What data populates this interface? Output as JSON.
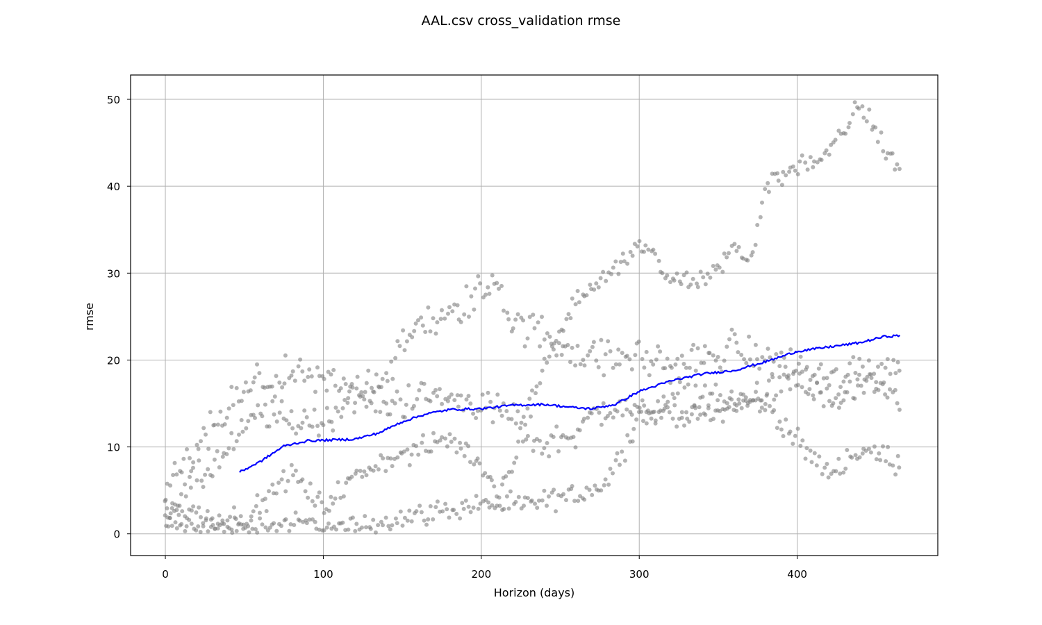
{
  "chart_data": {
    "type": "scatter",
    "title": "AAL.csv cross_validation rmse",
    "xlabel": "Horizon (days)",
    "ylabel": "rmse",
    "xlim": [
      -22,
      489
    ],
    "ylim": [
      -2.5,
      52.8
    ],
    "xticks": [
      0,
      100,
      200,
      300,
      400
    ],
    "yticks": [
      0,
      10,
      20,
      30,
      40,
      50
    ],
    "grid": true,
    "colors": {
      "points": "#808080",
      "line": "#0000ff",
      "grid": "#b0b0b0"
    },
    "point_bands": [
      {
        "name": "",
        "anchors": [
          [
            0,
            0.8
          ],
          [
            20,
            1.0
          ],
          [
            40,
            0.7
          ],
          [
            60,
            0.9
          ],
          [
            80,
            1.2
          ],
          [
            100,
            1.0
          ],
          [
            120,
            0.6
          ],
          [
            140,
            1.6
          ],
          [
            160,
            2.2
          ],
          [
            180,
            2.8
          ],
          [
            200,
            3.5
          ],
          [
            220,
            3.1
          ],
          [
            240,
            3.7
          ],
          [
            260,
            4.5
          ],
          [
            280,
            6.0
          ],
          [
            300,
            13.5
          ],
          [
            320,
            14.0
          ],
          [
            340,
            13.3
          ],
          [
            360,
            15.0
          ],
          [
            380,
            15.2
          ],
          [
            400,
            10.5
          ],
          [
            420,
            7.0
          ],
          [
            440,
            9.6
          ],
          [
            465,
            8.3
          ]
        ],
        "spread": 0.8
      },
      {
        "name": "",
        "anchors": [
          [
            0,
            2.5
          ],
          [
            20,
            6.0
          ],
          [
            40,
            9.5
          ],
          [
            60,
            14.0
          ],
          [
            80,
            13.0
          ],
          [
            100,
            12.8
          ],
          [
            120,
            16.0
          ],
          [
            140,
            14.5
          ],
          [
            160,
            16.0
          ],
          [
            180,
            15.5
          ],
          [
            200,
            15.0
          ],
          [
            220,
            13.5
          ],
          [
            240,
            10.0
          ],
          [
            260,
            12.0
          ],
          [
            280,
            14.5
          ],
          [
            300,
            14.0
          ],
          [
            320,
            15.5
          ],
          [
            340,
            16.0
          ],
          [
            360,
            15.0
          ],
          [
            380,
            16.0
          ],
          [
            400,
            17.5
          ],
          [
            420,
            15.0
          ],
          [
            440,
            16.5
          ],
          [
            465,
            15.5
          ]
        ],
        "spread": 1.2
      },
      {
        "name": "",
        "anchors": [
          [
            0,
            5.0
          ],
          [
            20,
            9.5
          ],
          [
            40,
            14.5
          ],
          [
            60,
            17.5
          ],
          [
            80,
            18.0
          ],
          [
            100,
            17.5
          ],
          [
            120,
            16.5
          ],
          [
            140,
            18.5
          ],
          [
            160,
            24.0
          ],
          [
            180,
            24.8
          ],
          [
            200,
            28.0
          ],
          [
            210,
            29.5
          ],
          [
            220,
            24.0
          ],
          [
            240,
            23.0
          ],
          [
            260,
            21.0
          ],
          [
            280,
            20.0
          ],
          [
            300,
            20.5
          ],
          [
            320,
            19.5
          ],
          [
            340,
            20.0
          ],
          [
            360,
            21.5
          ],
          [
            380,
            20.0
          ],
          [
            400,
            19.5
          ],
          [
            420,
            17.5
          ],
          [
            440,
            19.0
          ],
          [
            465,
            19.5
          ]
        ],
        "spread": 1.3
      },
      {
        "name": "",
        "anchors": [
          [
            0,
            3.0
          ],
          [
            20,
            2.5
          ],
          [
            40,
            1.5
          ],
          [
            60,
            3.0
          ],
          [
            80,
            7.0
          ],
          [
            100,
            3.0
          ],
          [
            120,
            6.5
          ],
          [
            140,
            8.5
          ],
          [
            160,
            9.5
          ],
          [
            180,
            11.0
          ],
          [
            200,
            8.0
          ],
          [
            210,
            5.0
          ],
          [
            220,
            8.0
          ],
          [
            240,
            20.0
          ],
          [
            260,
            27.0
          ],
          [
            280,
            29.5
          ],
          [
            300,
            33.5
          ],
          [
            310,
            31.5
          ],
          [
            320,
            29.0
          ],
          [
            340,
            29.0
          ],
          [
            360,
            33.0
          ],
          [
            370,
            31.0
          ],
          [
            380,
            40.0
          ],
          [
            400,
            42.5
          ],
          [
            420,
            43.5
          ],
          [
            440,
            49.5
          ],
          [
            450,
            46.0
          ],
          [
            465,
            41.8
          ]
        ],
        "spread": 0.8
      }
    ],
    "series": [
      {
        "name": "",
        "type": "line",
        "x": [
          47,
          60,
          75,
          90,
          105,
          120,
          135,
          150,
          165,
          180,
          200,
          220,
          240,
          260,
          270,
          285,
          300,
          320,
          340,
          360,
          380,
          400,
          420,
          440,
          455,
          465
        ],
        "y": [
          7.1,
          8.3,
          10.1,
          10.7,
          10.8,
          10.9,
          11.6,
          12.9,
          13.8,
          14.3,
          14.4,
          14.8,
          14.9,
          14.5,
          14.4,
          14.9,
          16.4,
          17.6,
          18.4,
          18.8,
          19.8,
          21.0,
          21.5,
          22.0,
          22.7,
          22.8
        ]
      }
    ]
  }
}
